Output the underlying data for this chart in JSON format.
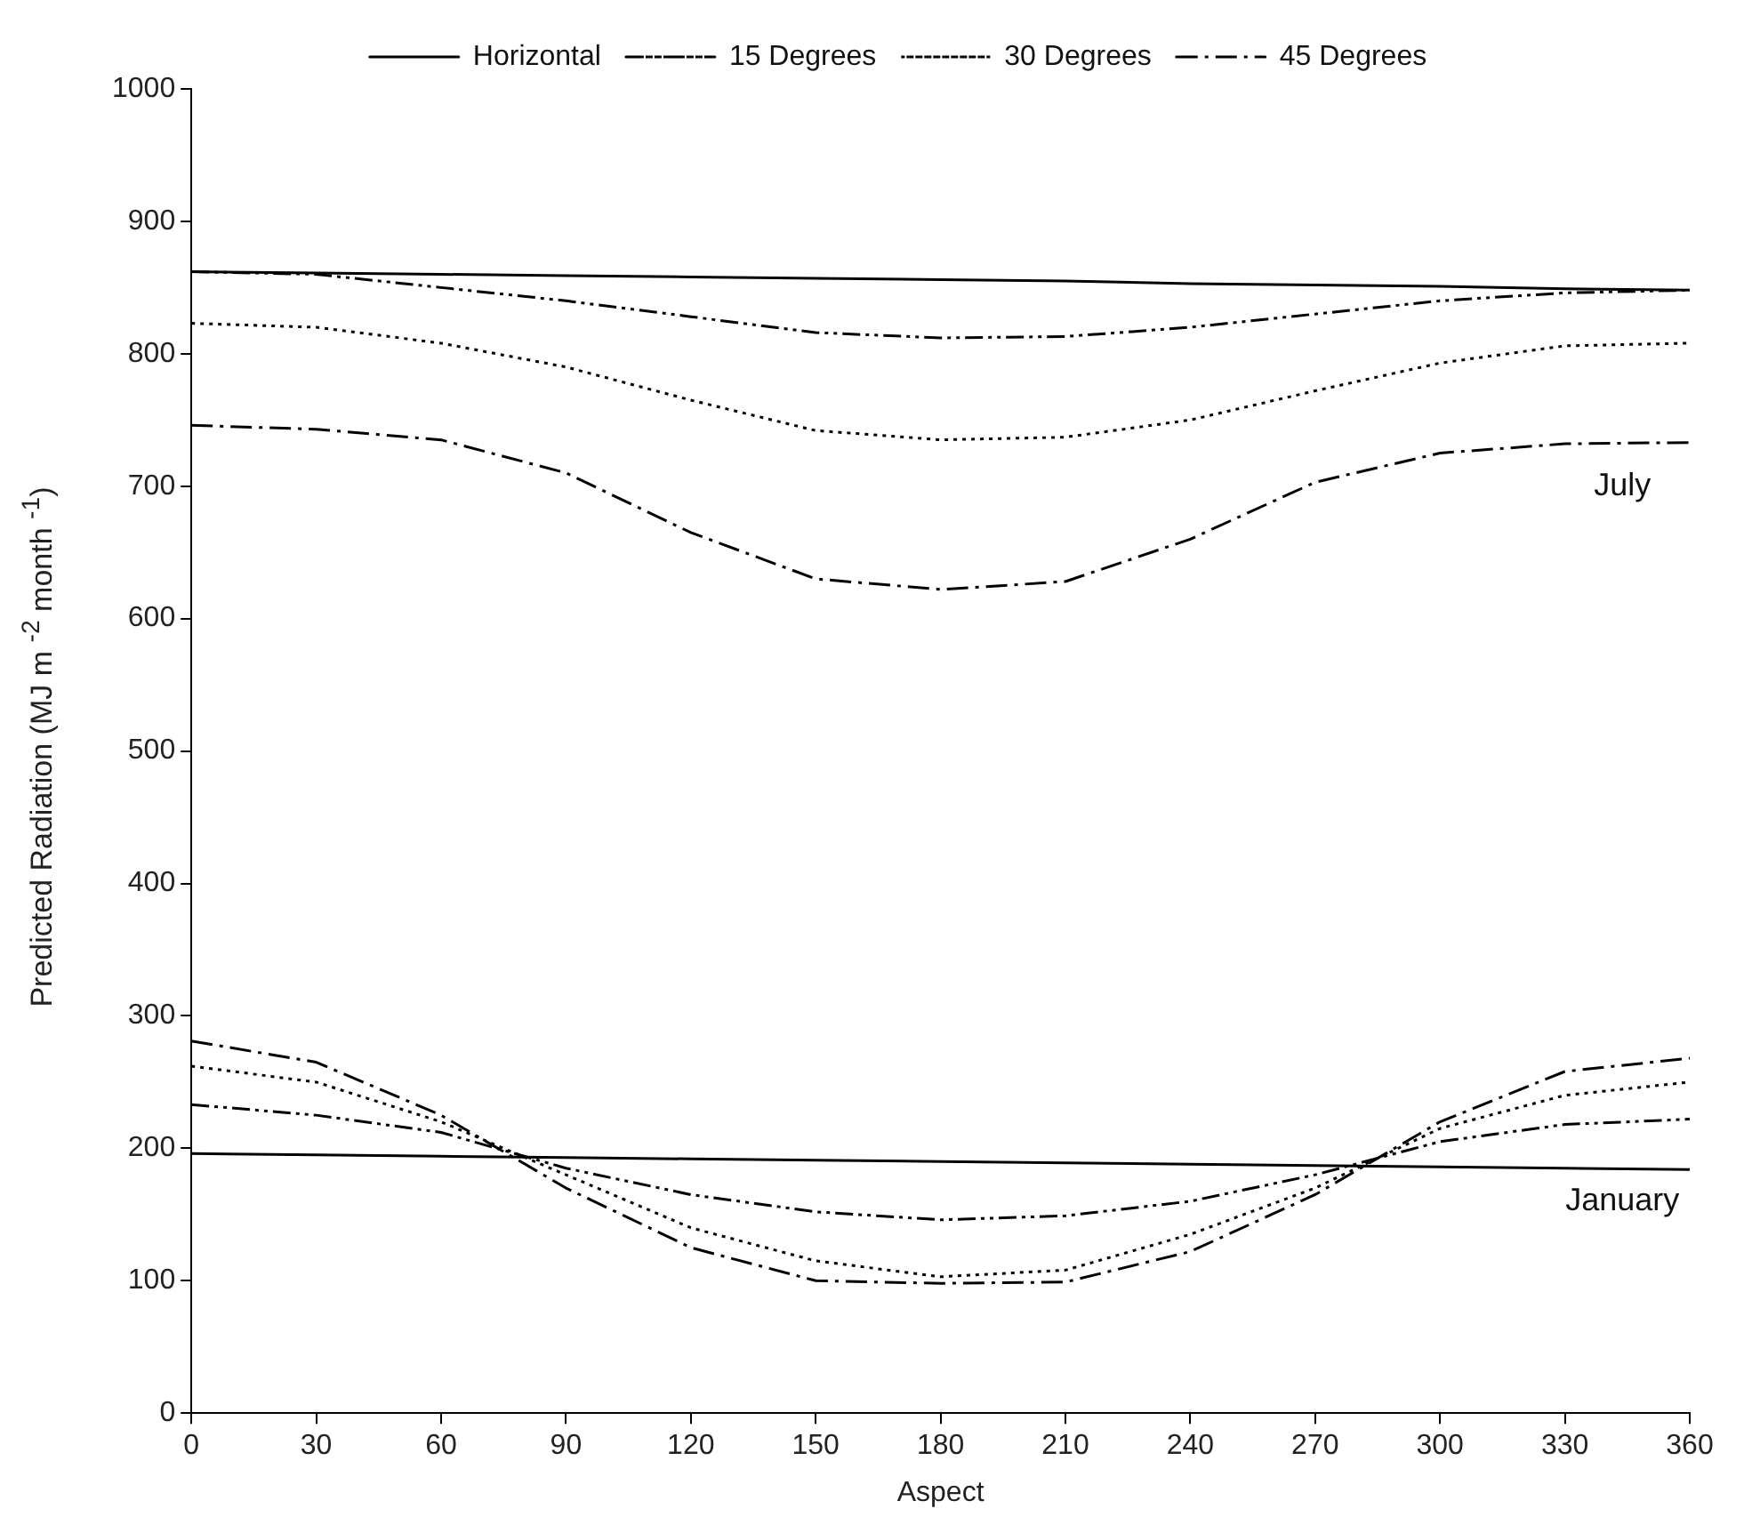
{
  "chart_data": {
    "type": "line",
    "xlabel": "Aspect",
    "ylabel": "Predicted Radiation (MJ m $^{-2}$ month $^{-1}$)",
    "x": [
      0,
      30,
      60,
      90,
      120,
      150,
      180,
      210,
      240,
      270,
      300,
      330,
      360
    ],
    "series": [
      {
        "name": "Horizontal",
        "color": "#000000",
        "line_style": "solid",
        "values": [
          862,
          861,
          860,
          859,
          858,
          857,
          856,
          855,
          853,
          852,
          851,
          849,
          848
        ]
      },
      {
        "name": "15 Degrees",
        "color": "#000000",
        "line_style": "dashed",
        "values": [
          862,
          860,
          850,
          840,
          828,
          816,
          812,
          813,
          820,
          830,
          840,
          846,
          848
        ]
      },
      {
        "name": "30 Degrees",
        "color": "#000000",
        "line_style": "dotted",
        "values": [
          823,
          820,
          808,
          790,
          765,
          742,
          735,
          737,
          750,
          772,
          793,
          806,
          808
        ]
      },
      {
        "name": "45 Degrees",
        "color": "#000000",
        "line_style": "dashdot",
        "values": [
          746,
          743,
          735,
          710,
          665,
          630,
          622,
          628,
          660,
          703,
          725,
          732,
          733
        ]
      },
      {
        "color": "#000000",
        "line_style": "solid",
        "values": [
          196,
          195,
          194,
          193,
          192,
          191,
          190,
          189,
          188,
          187,
          186,
          185,
          184
        ]
      },
      {
        "color": "#000000",
        "line_style": "dashed",
        "values": [
          233,
          225,
          212,
          185,
          165,
          152,
          146,
          149,
          160,
          180,
          205,
          218,
          222
        ]
      },
      {
        "color": "#000000",
        "line_style": "dotted",
        "values": [
          262,
          250,
          220,
          180,
          140,
          115,
          103,
          108,
          135,
          170,
          215,
          240,
          250
        ]
      },
      {
        "color": "#000000",
        "line_style": "dashdot",
        "values": [
          281,
          265,
          225,
          170,
          125,
          100,
          98,
          99,
          122,
          165,
          220,
          258,
          268
        ]
      }
    ],
    "xlim": [
      0,
      360
    ],
    "xticks": [
      0,
      30,
      60,
      90,
      120,
      150,
      180,
      210,
      240,
      270,
      300,
      330,
      360
    ],
    "ylim": [
      0,
      1000
    ],
    "yticks": [
      0,
      100,
      200,
      300,
      400,
      500,
      600,
      700,
      800,
      900,
      1000
    ],
    "grid": false,
    "legend": "top",
    "marker": "none",
    "annotations": [
      "July",
      "January"
    ]
  }
}
